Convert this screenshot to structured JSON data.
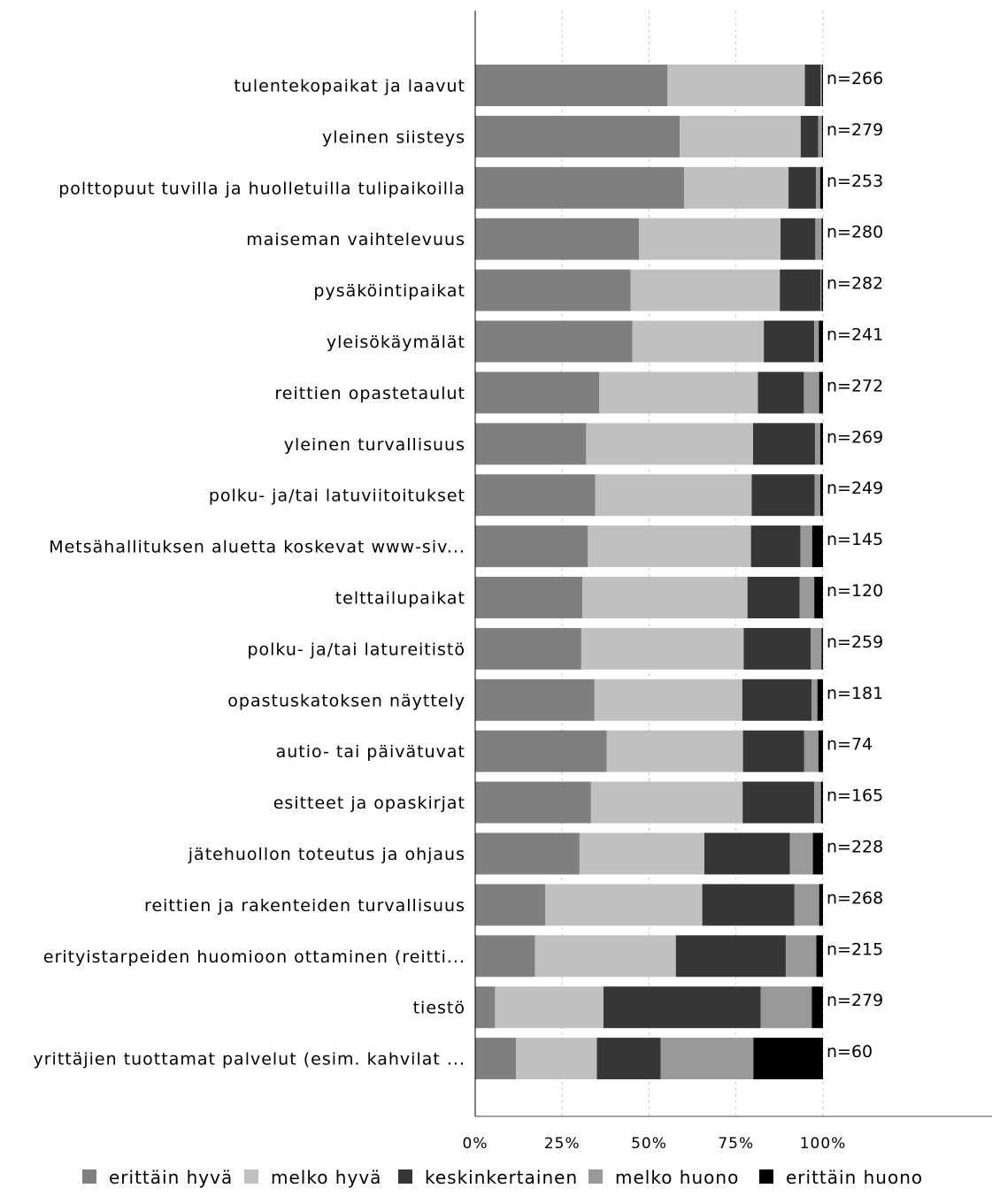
{
  "chart_data": {
    "type": "bar",
    "orientation": "horizontal",
    "stacked": "percent",
    "title": "",
    "xlabel": "",
    "ylabel": "",
    "xlim": [
      0,
      100
    ],
    "x_ticks": [
      "0%",
      "25%",
      "50%",
      "75%",
      "100%"
    ],
    "grid": "vertical dashed",
    "legend_position": "bottom",
    "categories": [
      "tulentekopaikat ja laavut",
      "yleinen siisteys",
      "polttopuut tuvilla ja huolletuilla tulipaikoilla",
      "maiseman vaihtelevuus",
      "pysäköintipaikat",
      "yleisökäymälät",
      "reittien opastetaulut",
      "yleinen turvallisuus",
      "polku- ja/tai latuviitoitukset",
      "Metsähallituksen aluetta koskevat www-siv...",
      "telttailupaikat",
      "polku- ja/tai latureitistö",
      "opastuskatoksen näyttely",
      "autio- tai päivätuvat",
      "esitteet ja opaskirjat",
      "jätehuollon toteutus ja ohjaus",
      "reittien ja rakenteiden turvallisuus",
      "erityistarpeiden huomioon ottaminen (reitti...",
      "tiestö",
      "yrittäjien tuottamat palvelut (esim. kahvilat ..."
    ],
    "n_labels": [
      "n=266",
      "n=279",
      "n=253",
      "n=280",
      "n=282",
      "n=241",
      "n=272",
      "n=269",
      "n=249",
      "n=145",
      "n=120",
      "n=259",
      "n=181",
      "n=74",
      "n=165",
      "n=228",
      "n=268",
      "n=215",
      "n=279",
      "n=60"
    ],
    "series": [
      {
        "name": "erittäin hyvä",
        "color": "#7f7f7f",
        "values": [
          55.3,
          58.8,
          60.1,
          47.1,
          44.7,
          45.2,
          35.7,
          31.9,
          34.5,
          32.4,
          30.8,
          30.5,
          34.3,
          37.8,
          33.3,
          30.0,
          20.1,
          17.2,
          5.7,
          11.7
        ]
      },
      {
        "name": "melko hyvä",
        "color": "#c0c0c0",
        "values": [
          39.5,
          34.8,
          30.0,
          40.7,
          42.9,
          37.8,
          45.6,
          48.0,
          45.0,
          46.9,
          47.5,
          46.7,
          42.5,
          39.2,
          43.6,
          35.9,
          45.2,
          40.5,
          31.2,
          23.3
        ]
      },
      {
        "name": "keskinkertainen",
        "color": "#363636",
        "values": [
          4.5,
          5.0,
          7.9,
          10.0,
          11.7,
          14.5,
          13.2,
          17.8,
          18.1,
          14.2,
          15.0,
          19.3,
          19.9,
          17.6,
          20.6,
          24.6,
          26.5,
          31.6,
          45.2,
          18.3
        ]
      },
      {
        "name": "melko huono",
        "color": "#999999",
        "values": [
          0.4,
          1.1,
          1.2,
          1.8,
          0.3,
          1.3,
          4.4,
          1.5,
          1.6,
          3.4,
          4.2,
          3.1,
          1.7,
          4.1,
          1.9,
          6.6,
          7.1,
          8.8,
          14.7,
          26.7
        ]
      },
      {
        "name": "erittäin huono",
        "color": "#000000",
        "values": [
          0.3,
          0.3,
          0.8,
          0.4,
          0.4,
          1.2,
          1.1,
          0.8,
          0.8,
          3.1,
          2.5,
          0.4,
          1.6,
          1.3,
          0.6,
          2.9,
          1.1,
          1.9,
          3.2,
          20.0
        ]
      }
    ]
  }
}
